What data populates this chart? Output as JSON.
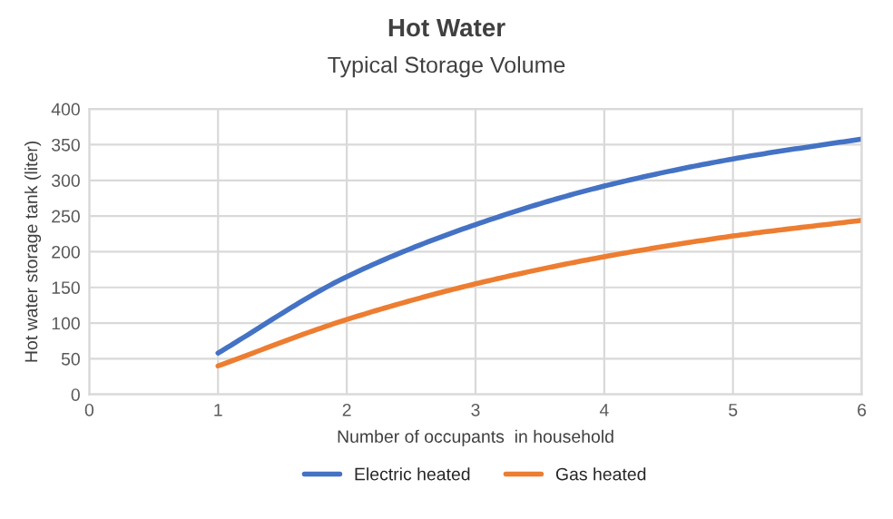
{
  "chart_data": {
    "type": "line",
    "title": "Hot Water",
    "subtitle": "Typical Storage Volume",
    "xlabel": "Number of occupants  in household",
    "ylabel": "Hot water storage tank (liter)",
    "x": [
      1,
      2,
      3,
      4,
      5,
      6
    ],
    "series": [
      {
        "name": "Electric heated",
        "color": "#4472c4",
        "values": [
          58,
          165,
          238,
          292,
          330,
          358
        ]
      },
      {
        "name": "Gas heated",
        "color": "#ed7d31",
        "values": [
          40,
          105,
          155,
          193,
          222,
          244
        ]
      }
    ],
    "xlim": [
      0,
      6
    ],
    "xticks": [
      0,
      1,
      2,
      3,
      4,
      5,
      6
    ],
    "ylim": [
      0,
      400
    ],
    "yticks": [
      0,
      50,
      100,
      150,
      200,
      250,
      300,
      350,
      400
    ],
    "grid": true,
    "legend": "bottom",
    "marker": "none",
    "line_style": "solid"
  }
}
